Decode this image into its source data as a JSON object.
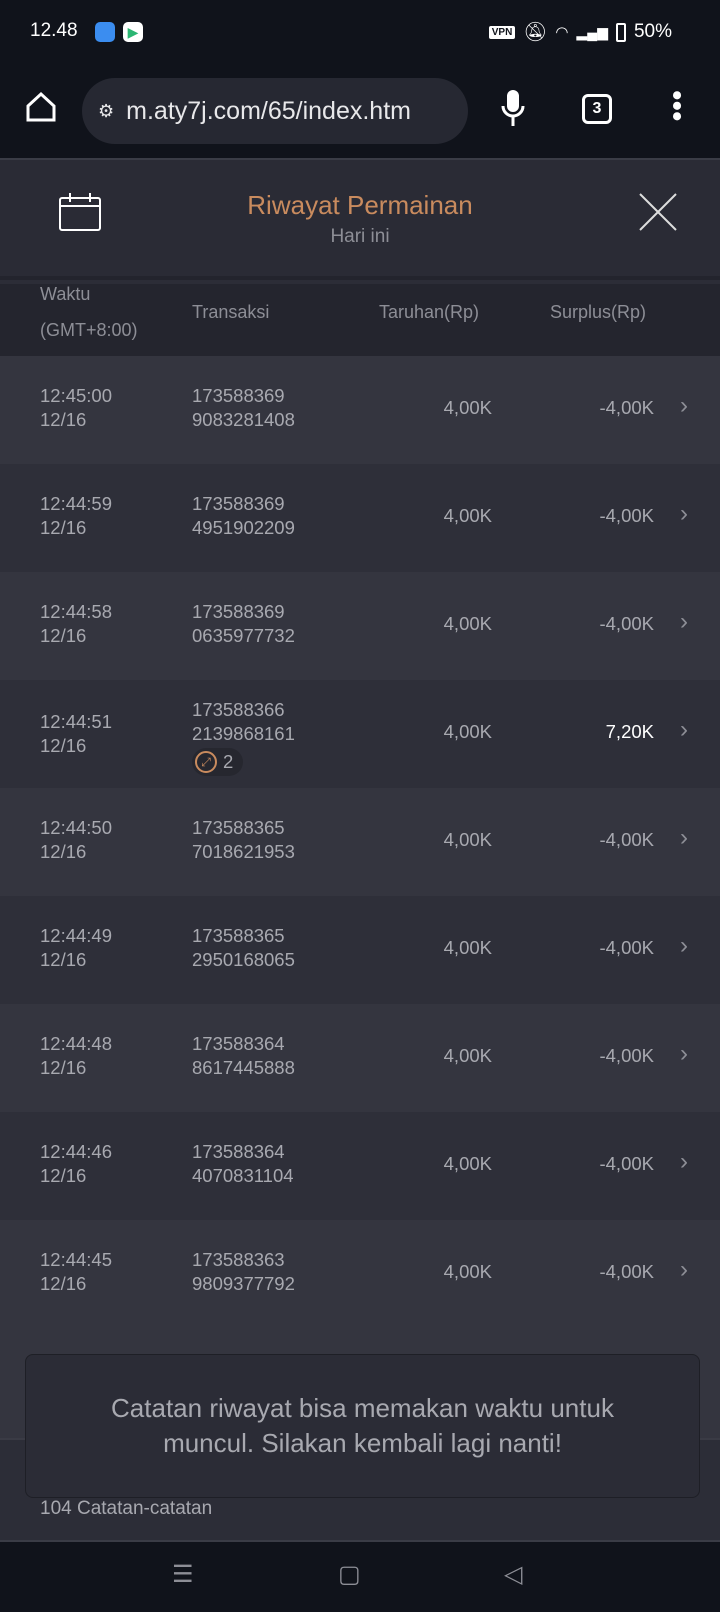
{
  "status_bar": {
    "time": "12.48",
    "vpn": "VPN",
    "battery": "50%"
  },
  "browser": {
    "url": "m.aty7j.com/65/index.htm",
    "tab_count": "3"
  },
  "header": {
    "title": "Riwayat Permainan",
    "subtitle": "Hari ini"
  },
  "columns": {
    "time": "Waktu",
    "time_zone": "(GMT+8:00)",
    "transaction": "Transaksi",
    "bet": "Taruhan(Rp)",
    "surplus": "Surplus(Rp)"
  },
  "rows": [
    {
      "time": "12:45:00",
      "date": "12/16",
      "tx1": "173588369",
      "tx2": "9083281408",
      "bet": "4,00K",
      "surplus": "-4,00K"
    },
    {
      "time": "12:44:59",
      "date": "12/16",
      "tx1": "173588369",
      "tx2": "4951902209",
      "bet": "4,00K",
      "surplus": "-4,00K"
    },
    {
      "time": "12:44:58",
      "date": "12/16",
      "tx1": "173588369",
      "tx2": "0635977732",
      "bet": "4,00K",
      "surplus": "-4,00K"
    },
    {
      "time": "12:44:51",
      "date": "12/16",
      "tx1": "173588366",
      "tx2": "2139868161",
      "bet": "4,00K",
      "surplus": "7,20K",
      "badge": "2"
    },
    {
      "time": "12:44:50",
      "date": "12/16",
      "tx1": "173588365",
      "tx2": "7018621953",
      "bet": "4,00K",
      "surplus": "-4,00K"
    },
    {
      "time": "12:44:49",
      "date": "12/16",
      "tx1": "173588365",
      "tx2": "2950168065",
      "bet": "4,00K",
      "surplus": "-4,00K"
    },
    {
      "time": "12:44:48",
      "date": "12/16",
      "tx1": "173588364",
      "tx2": "8617445888",
      "bet": "4,00K",
      "surplus": "-4,00K"
    },
    {
      "time": "12:44:46",
      "date": "12/16",
      "tx1": "173588364",
      "tx2": "4070831104",
      "bet": "4,00K",
      "surplus": "-4,00K"
    },
    {
      "time": "12:44:45",
      "date": "12/16",
      "tx1": "173588363",
      "tx2": "9809377792",
      "bet": "4,00K",
      "surplus": "-4,00K"
    }
  ],
  "footer": {
    "count": "104 Catatan-catatan"
  },
  "toast": {
    "message": "Catatan riwayat bisa memakan waktu untuk muncul. Silakan kembali lagi nanti!"
  },
  "colors": {
    "accent": "#c98b5e",
    "win": "#ffffff"
  }
}
